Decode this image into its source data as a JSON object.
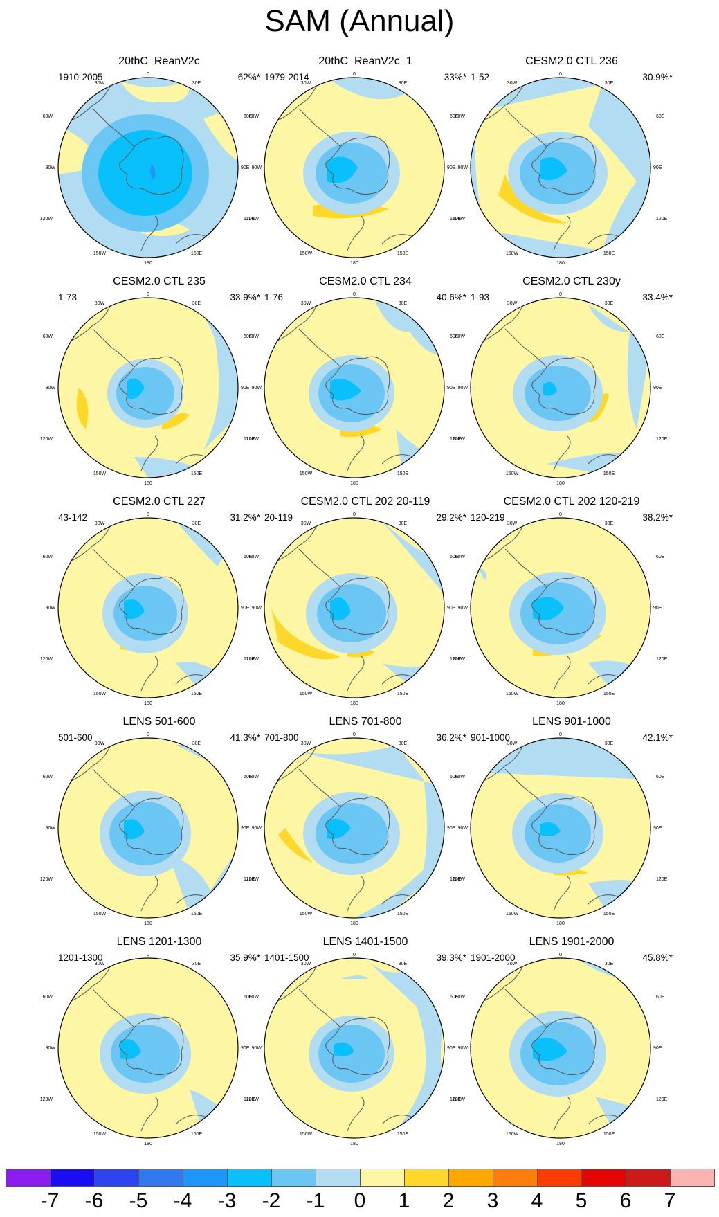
{
  "title": "SAM (Annual)",
  "colorbar": {
    "colors": [
      "#8a1cf0",
      "#1a0cf5",
      "#2c44f0",
      "#3478f0",
      "#1e96f8",
      "#0ac0fa",
      "#6cc6f4",
      "#b2dcf2",
      "#fdf6a4",
      "#fdd82a",
      "#fca800",
      "#fc7d0a",
      "#fc3c04",
      "#e40404",
      "#cc1a1a",
      "#fbb2b2"
    ],
    "labels": [
      "-7",
      "-6",
      "-5",
      "-4",
      "-3",
      "-2",
      "-1",
      "0",
      "1",
      "2",
      "3",
      "4",
      "5",
      "6",
      "7"
    ]
  },
  "grid_labels": {
    "top": "0",
    "top_left": "30W",
    "top_right": "30E",
    "upper_left": "60W",
    "upper_right": "60E",
    "left": "90W",
    "right": "90E",
    "lower_left": "120W",
    "lower_right": "120E",
    "bottom_left": "150W",
    "bottom_right": "150E",
    "bottom": "180"
  },
  "panels": [
    {
      "title": "20thC_ReanV2c",
      "period": "1910-2005",
      "percent": "62%*"
    },
    {
      "title": "20thC_ReanV2c_1",
      "period": "1979-2014",
      "percent": "33%*"
    },
    {
      "title": "CESM2.0 CTL 236",
      "period": "1-52",
      "percent": "30.9%*"
    },
    {
      "title": "CESM2.0 CTL 235",
      "period": "1-73",
      "percent": "33.9%*"
    },
    {
      "title": "CESM2.0 CTL 234",
      "period": "1-76",
      "percent": "40.6%*"
    },
    {
      "title": "CESM2.0 CTL 230y",
      "period": "1-93",
      "percent": "33.4%*"
    },
    {
      "title": "CESM2.0 CTL 227",
      "period": "43-142",
      "percent": "31.2%*"
    },
    {
      "title": "CESM2.0 CTL 202 20-119",
      "period": "20-119",
      "percent": "29.2%*"
    },
    {
      "title": "CESM2.0 CTL 202 120-219",
      "period": "120-219",
      "percent": "38.2%*"
    },
    {
      "title": "LENS 501-600",
      "period": "501-600",
      "percent": "41.3%*"
    },
    {
      "title": "LENS 701-800",
      "period": "701-800",
      "percent": "36.2%*"
    },
    {
      "title": "LENS 901-1000",
      "period": "901-1000",
      "percent": "42.1%*"
    },
    {
      "title": "LENS 1201-1300",
      "period": "1201-1300",
      "percent": "35.9%*"
    },
    {
      "title": "LENS 1401-1500",
      "period": "1401-1500",
      "percent": "39.3%*"
    },
    {
      "title": "LENS 1901-2000",
      "period": "1901-2000",
      "percent": "45.8%*"
    }
  ]
}
